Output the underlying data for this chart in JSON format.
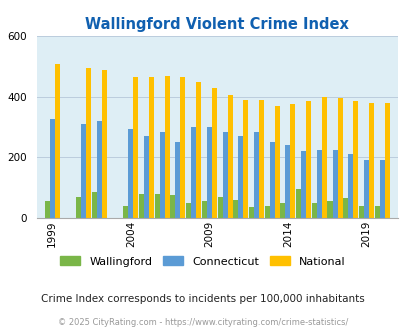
{
  "title": "Wallingford Violent Crime Index",
  "years": [
    1999,
    2001,
    2002,
    2004,
    2005,
    2006,
    2007,
    2008,
    2009,
    2010,
    2011,
    2012,
    2013,
    2014,
    2015,
    2016,
    2017,
    2018,
    2019,
    2020
  ],
  "year_positions": [
    1999,
    2001,
    2002,
    2004,
    2005,
    2006,
    2007,
    2008,
    2009,
    2010,
    2011,
    2012,
    2013,
    2014,
    2015,
    2016,
    2017,
    2018,
    2019,
    2020
  ],
  "wallingford": [
    55,
    70,
    85,
    40,
    80,
    80,
    75,
    50,
    55,
    70,
    60,
    35,
    40,
    50,
    95,
    50,
    55,
    65,
    40,
    40
  ],
  "connecticut": [
    325,
    310,
    320,
    295,
    270,
    285,
    250,
    300,
    300,
    285,
    270,
    285,
    250,
    240,
    220,
    225,
    225,
    210,
    190,
    190
  ],
  "national": [
    510,
    495,
    490,
    465,
    467,
    470,
    465,
    450,
    430,
    405,
    390,
    390,
    370,
    375,
    385,
    400,
    395,
    385,
    380,
    380
  ],
  "wallingford_color": "#7ab648",
  "connecticut_color": "#5b9bd5",
  "national_color": "#ffc000",
  "bg_color": "#deeef5",
  "ylim": [
    0,
    600
  ],
  "yticks": [
    0,
    200,
    400,
    600
  ],
  "tick_years": [
    1999,
    2004,
    2009,
    2014,
    2019
  ],
  "legend_labels": [
    "Wallingford",
    "Connecticut",
    "National"
  ],
  "subtitle": "Crime Index corresponds to incidents per 100,000 inhabitants",
  "footer": "© 2025 CityRating.com - https://www.cityrating.com/crime-statistics/",
  "title_color": "#1060b0",
  "subtitle_color": "#222222",
  "footer_color": "#999999",
  "grid_color": "#bbccdd"
}
